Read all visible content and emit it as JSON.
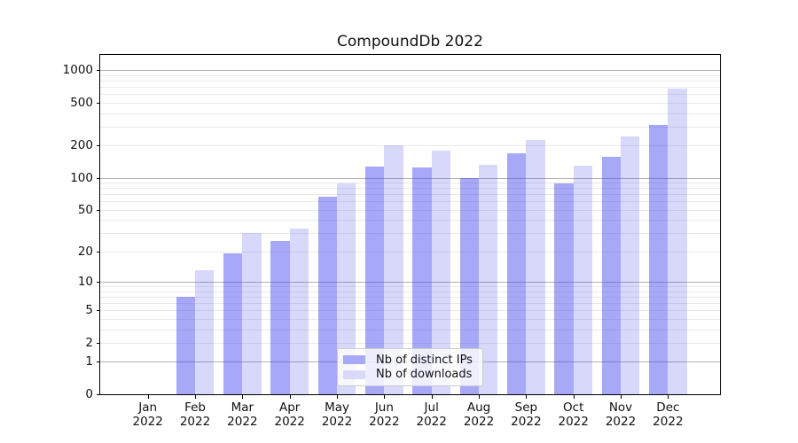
{
  "title": "CompoundDb 2022",
  "chart_data": {
    "type": "bar",
    "title": "CompoundDb 2022",
    "x_categories": [
      "Jan",
      "Feb",
      "Mar",
      "Apr",
      "May",
      "Jun",
      "Jul",
      "Aug",
      "Sep",
      "Oct",
      "Nov",
      "Dec"
    ],
    "x_year_label": "2022",
    "series": [
      {
        "name": "Nb of distinct IPs",
        "bar_color": "rgba(62,62,240,0.45)",
        "legend_color": "#a8a8f8",
        "values": [
          0,
          7,
          19,
          25,
          66,
          127,
          125,
          100,
          168,
          88,
          158,
          312
        ]
      },
      {
        "name": "Nb of downloads",
        "bar_color": "rgba(60,60,230,0.2)",
        "legend_color": "#d9d9fa",
        "values": [
          0,
          13,
          30,
          33,
          89,
          200,
          180,
          133,
          226,
          130,
          242,
          673
        ]
      }
    ],
    "y_scale": "log1p",
    "y_tick_values": [
      0,
      1,
      2,
      5,
      10,
      20,
      50,
      100,
      200,
      500,
      1000
    ],
    "y_major_gridlines": [
      1,
      10,
      100,
      1000
    ],
    "y_minor_gridlines": [
      2,
      3,
      4,
      5,
      6,
      7,
      8,
      9,
      20,
      30,
      40,
      50,
      60,
      70,
      80,
      90,
      200,
      300,
      400,
      500,
      600,
      700,
      800,
      900
    ],
    "ylim": [
      0,
      1380
    ],
    "grid": "on",
    "legend_position": "lower center"
  },
  "colors": {
    "major_grid": "#b3b3b3",
    "minor_grid": "#e9e9e9",
    "axis": "#000000",
    "text": "#111111"
  }
}
